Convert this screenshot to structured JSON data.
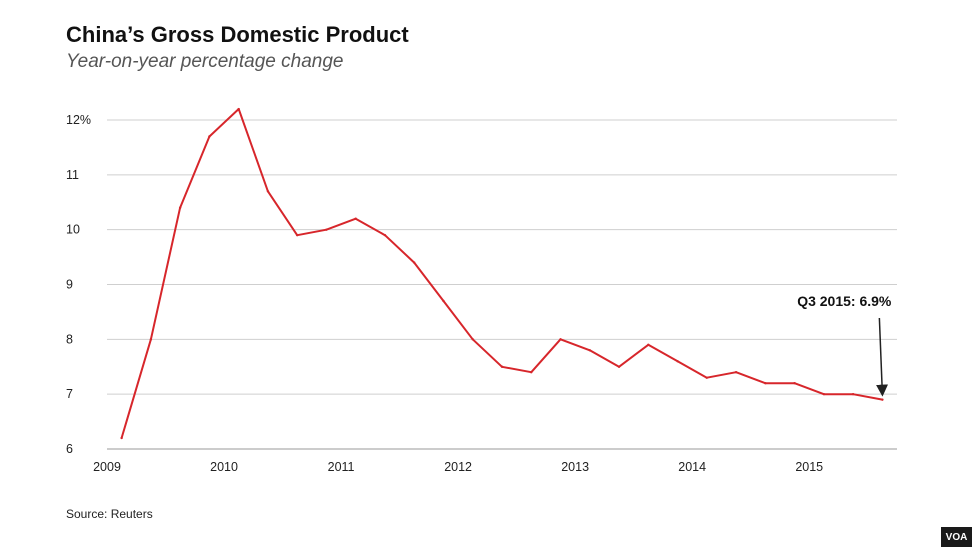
{
  "header": {
    "title": "China’s Gross Domestic Product",
    "subtitle": "Year-on-year percentage change"
  },
  "footer": {
    "source": "Source: Reuters",
    "logo": "VOA"
  },
  "colors": {
    "line": "#d7262b",
    "grid": "#cfcfcf",
    "arrow": "#222222"
  },
  "chart_data": {
    "type": "line",
    "title": "China’s Gross Domestic Product",
    "subtitle": "Year-on-year percentage change",
    "xlabel": "",
    "ylabel": "",
    "xlim": [
      2009,
      2015.75
    ],
    "ylim": [
      6,
      12
    ],
    "x_ticks": [
      {
        "value": 2009,
        "label": "2009"
      },
      {
        "value": 2010,
        "label": "2010"
      },
      {
        "value": 2011,
        "label": "2011"
      },
      {
        "value": 2012,
        "label": "2012"
      },
      {
        "value": 2013,
        "label": "2013"
      },
      {
        "value": 2014,
        "label": "2014"
      },
      {
        "value": 2015,
        "label": "2015"
      }
    ],
    "y_ticks": [
      {
        "value": 6,
        "label": "6"
      },
      {
        "value": 7,
        "label": "7"
      },
      {
        "value": 8,
        "label": "8"
      },
      {
        "value": 9,
        "label": "9"
      },
      {
        "value": 10,
        "label": "10"
      },
      {
        "value": 11,
        "label": "11"
      },
      {
        "value": 12,
        "label": "12%"
      }
    ],
    "grid": "horizontal",
    "series": [
      {
        "points": [
          {
            "q": "Q1 2009",
            "x": 2009.125,
            "y": 6.2
          },
          {
            "q": "Q2 2009",
            "x": 2009.375,
            "y": 8.0
          },
          {
            "q": "Q3 2009",
            "x": 2009.625,
            "y": 10.4
          },
          {
            "q": "Q4 2009",
            "x": 2009.875,
            "y": 11.7
          },
          {
            "q": "Q1 2010",
            "x": 2010.125,
            "y": 12.2
          },
          {
            "q": "Q2 2010",
            "x": 2010.375,
            "y": 10.7
          },
          {
            "q": "Q3 2010",
            "x": 2010.625,
            "y": 9.9
          },
          {
            "q": "Q4 2010",
            "x": 2010.875,
            "y": 10.0
          },
          {
            "q": "Q1 2011",
            "x": 2011.125,
            "y": 10.2
          },
          {
            "q": "Q2 2011",
            "x": 2011.375,
            "y": 9.9
          },
          {
            "q": "Q3 2011",
            "x": 2011.625,
            "y": 9.4
          },
          {
            "q": "Q4 2011",
            "x": 2011.875,
            "y": 8.7
          },
          {
            "q": "Q1 2012",
            "x": 2012.125,
            "y": 8.0
          },
          {
            "q": "Q2 2012",
            "x": 2012.375,
            "y": 7.5
          },
          {
            "q": "Q3 2012",
            "x": 2012.625,
            "y": 7.4
          },
          {
            "q": "Q4 2012",
            "x": 2012.875,
            "y": 8.0
          },
          {
            "q": "Q1 2013",
            "x": 2013.125,
            "y": 7.8
          },
          {
            "q": "Q2 2013",
            "x": 2013.375,
            "y": 7.5
          },
          {
            "q": "Q3 2013",
            "x": 2013.625,
            "y": 7.9
          },
          {
            "q": "Q4 2013",
            "x": 2013.875,
            "y": 7.6
          },
          {
            "q": "Q1 2014",
            "x": 2014.125,
            "y": 7.3
          },
          {
            "q": "Q2 2014",
            "x": 2014.375,
            "y": 7.4
          },
          {
            "q": "Q3 2014",
            "x": 2014.625,
            "y": 7.2
          },
          {
            "q": "Q4 2014",
            "x": 2014.875,
            "y": 7.2
          },
          {
            "q": "Q1 2015",
            "x": 2015.125,
            "y": 7.0
          },
          {
            "q": "Q2 2015",
            "x": 2015.375,
            "y": 7.0
          },
          {
            "q": "Q3 2015",
            "x": 2015.625,
            "y": 6.9
          }
        ]
      }
    ],
    "annotation": {
      "text": "Q3 2015: 6.9%",
      "x": 2015.625,
      "y": 6.9
    }
  }
}
